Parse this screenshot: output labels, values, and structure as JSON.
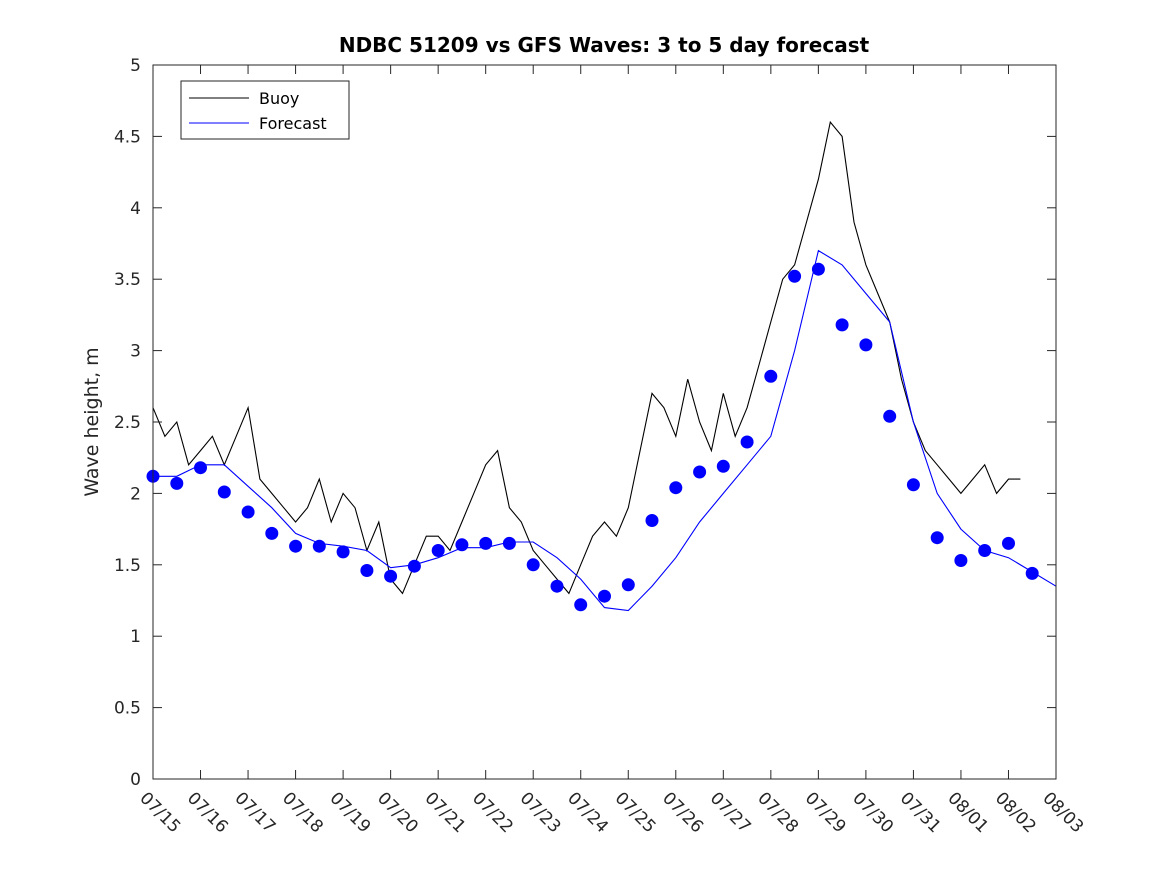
{
  "chart_data": {
    "type": "line",
    "title": "NDBC 51209 vs GFS Waves: 3 to 5 day forecast",
    "xlabel": "",
    "ylabel": "Wave height, m",
    "ylim": [
      0,
      5
    ],
    "yticks": [
      "0",
      "0.5",
      "1",
      "1.5",
      "2",
      "2.5",
      "3",
      "3.5",
      "4",
      "4.5",
      "5"
    ],
    "x_start": "07/15",
    "x_end": "08/03",
    "xtick_labels": [
      "07/15",
      "07/16",
      "07/17",
      "07/18",
      "07/19",
      "07/20",
      "07/21",
      "07/22",
      "07/23",
      "07/24",
      "07/25",
      "07/26",
      "07/27",
      "07/28",
      "07/29",
      "07/30",
      "07/31",
      "08/01",
      "08/02",
      "08/03"
    ],
    "grid": false,
    "legend_position": "top-left",
    "series": [
      {
        "name": "Buoy",
        "color": "#000000",
        "style": "line",
        "x": [
          "07/15 00:00",
          "07/15 06:00",
          "07/15 12:00",
          "07/15 18:00",
          "07/16 00:00",
          "07/16 06:00",
          "07/16 12:00",
          "07/16 18:00",
          "07/17 00:00",
          "07/17 06:00",
          "07/17 12:00",
          "07/17 18:00",
          "07/18 00:00",
          "07/18 06:00",
          "07/18 12:00",
          "07/18 18:00",
          "07/19 00:00",
          "07/19 06:00",
          "07/19 12:00",
          "07/19 18:00",
          "07/20 00:00",
          "07/20 06:00",
          "07/20 12:00",
          "07/20 18:00",
          "07/21 00:00",
          "07/21 06:00",
          "07/21 12:00",
          "07/21 18:00",
          "07/22 00:00",
          "07/22 06:00",
          "07/22 12:00",
          "07/22 18:00",
          "07/23 00:00",
          "07/23 06:00",
          "07/23 12:00",
          "07/23 18:00",
          "07/24 00:00",
          "07/24 06:00",
          "07/24 12:00",
          "07/24 18:00",
          "07/25 00:00",
          "07/25 06:00",
          "07/25 12:00",
          "07/25 18:00",
          "07/26 00:00",
          "07/26 06:00",
          "07/26 12:00",
          "07/26 18:00",
          "07/27 00:00",
          "07/27 06:00",
          "07/27 12:00",
          "07/27 18:00",
          "07/28 00:00",
          "07/28 06:00",
          "07/28 12:00",
          "07/28 18:00",
          "07/29 00:00",
          "07/29 06:00",
          "07/29 12:00",
          "07/29 18:00",
          "07/30 00:00",
          "07/30 06:00",
          "07/30 12:00",
          "07/30 18:00",
          "07/31 00:00",
          "07/31 06:00",
          "07/31 12:00",
          "07/31 18:00",
          "08/01 00:00",
          "08/01 06:00",
          "08/01 12:00",
          "08/01 18:00",
          "08/02 00:00",
          "08/02 06:00"
        ],
        "y": [
          2.6,
          2.4,
          2.5,
          2.2,
          2.3,
          2.4,
          2.2,
          2.4,
          2.6,
          2.1,
          2.0,
          1.9,
          1.8,
          1.9,
          2.1,
          1.8,
          2.0,
          1.9,
          1.6,
          1.8,
          1.4,
          1.3,
          1.5,
          1.7,
          1.7,
          1.6,
          1.8,
          2.0,
          2.2,
          2.3,
          1.9,
          1.8,
          1.6,
          1.5,
          1.4,
          1.3,
          1.5,
          1.7,
          1.8,
          1.7,
          1.9,
          2.3,
          2.7,
          2.6,
          2.4,
          2.8,
          2.5,
          2.3,
          2.7,
          2.4,
          2.6,
          2.9,
          3.2,
          3.5,
          3.6,
          3.9,
          4.2,
          4.6,
          4.5,
          3.9,
          3.6,
          3.4,
          3.2,
          2.8,
          2.5,
          2.3,
          2.2,
          2.1,
          2.0,
          2.1,
          2.2,
          2.0,
          2.1,
          2.1
        ]
      },
      {
        "name": "Forecast",
        "color": "#0000ff",
        "style": "line",
        "x": [
          "07/15 00:00",
          "07/15 12:00",
          "07/16 00:00",
          "07/16 12:00",
          "07/17 00:00",
          "07/17 12:00",
          "07/18 00:00",
          "07/18 12:00",
          "07/19 00:00",
          "07/19 12:00",
          "07/20 00:00",
          "07/20 12:00",
          "07/21 00:00",
          "07/21 12:00",
          "07/22 00:00",
          "07/22 12:00",
          "07/23 00:00",
          "07/23 12:00",
          "07/24 00:00",
          "07/24 12:00",
          "07/25 00:00",
          "07/25 12:00",
          "07/26 00:00",
          "07/26 12:00",
          "07/27 00:00",
          "07/27 12:00",
          "07/28 00:00",
          "07/28 12:00",
          "07/29 00:00",
          "07/29 12:00",
          "07/30 00:00",
          "07/30 12:00",
          "07/31 00:00",
          "07/31 12:00",
          "08/01 00:00",
          "08/01 12:00",
          "08/02 00:00",
          "08/02 12:00",
          "08/03 00:00"
        ],
        "y": [
          2.12,
          2.12,
          2.2,
          2.2,
          2.05,
          1.9,
          1.72,
          1.65,
          1.63,
          1.6,
          1.48,
          1.5,
          1.55,
          1.62,
          1.62,
          1.66,
          1.66,
          1.55,
          1.4,
          1.2,
          1.18,
          1.35,
          1.55,
          1.8,
          2.0,
          2.2,
          2.4,
          3.0,
          3.7,
          3.6,
          3.4,
          3.2,
          2.5,
          2.0,
          1.75,
          1.6,
          1.55,
          1.45,
          1.35
        ]
      },
      {
        "name": "",
        "color": "#0000ff",
        "style": "markers",
        "x": [
          "07/15 00:00",
          "07/15 12:00",
          "07/16 00:00",
          "07/16 12:00",
          "07/17 00:00",
          "07/17 12:00",
          "07/18 00:00",
          "07/18 12:00",
          "07/19 00:00",
          "07/19 12:00",
          "07/20 00:00",
          "07/20 12:00",
          "07/21 00:00",
          "07/21 12:00",
          "07/22 00:00",
          "07/22 12:00",
          "07/23 00:00",
          "07/23 12:00",
          "07/24 00:00",
          "07/24 12:00",
          "07/25 00:00",
          "07/25 12:00",
          "07/26 00:00",
          "07/26 12:00",
          "07/27 00:00",
          "07/27 12:00",
          "07/28 00:00",
          "07/28 12:00",
          "07/29 00:00",
          "07/29 12:00",
          "07/30 00:00",
          "07/30 12:00",
          "07/31 00:00",
          "07/31 12:00",
          "08/01 00:00",
          "08/01 12:00",
          "08/02 00:00",
          "08/02 12:00"
        ],
        "y": [
          2.12,
          2.07,
          2.18,
          2.01,
          1.87,
          1.72,
          1.63,
          1.63,
          1.59,
          1.46,
          1.42,
          1.49,
          1.6,
          1.64,
          1.65,
          1.65,
          1.5,
          1.35,
          1.22,
          1.28,
          1.36,
          1.81,
          2.04,
          2.15,
          2.19,
          2.36,
          2.82,
          3.52,
          3.57,
          3.18,
          3.04,
          2.54,
          2.06,
          1.69,
          1.53,
          1.6,
          1.65,
          1.44
        ]
      }
    ]
  }
}
